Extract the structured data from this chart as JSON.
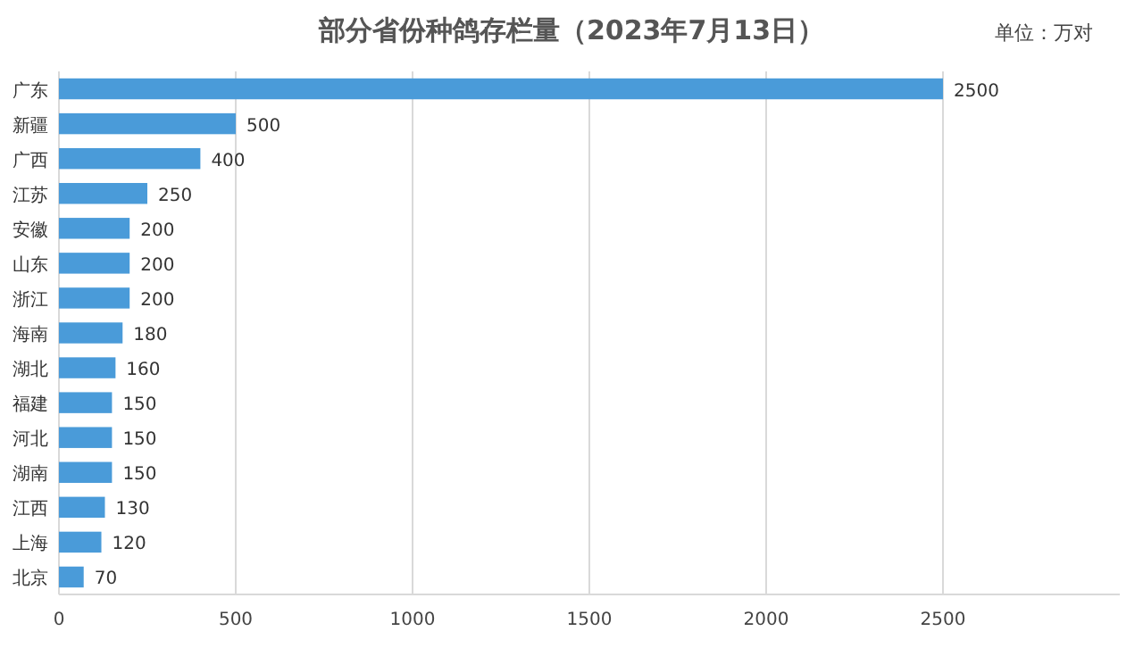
{
  "chart_data": {
    "type": "bar",
    "orientation": "horizontal",
    "title": "部分省份种鸽存栏量（2023年7月13日）",
    "annotations": [
      "单位：万对"
    ],
    "categories": [
      "广东",
      "新疆",
      "广西",
      "江苏",
      "安徽",
      "山东",
      "浙江",
      "海南",
      "湖北",
      "福建",
      "河北",
      "湖南",
      "江西",
      "上海",
      "北京"
    ],
    "values": [
      2500,
      500,
      400,
      250,
      200,
      200,
      200,
      180,
      160,
      150,
      150,
      150,
      130,
      120,
      70
    ],
    "color": "#4a9bd9",
    "xlim": [
      0,
      3000
    ],
    "xticks": [
      0,
      500,
      1000,
      1500,
      2000,
      2500
    ],
    "grid": "x",
    "data_labels": true
  }
}
